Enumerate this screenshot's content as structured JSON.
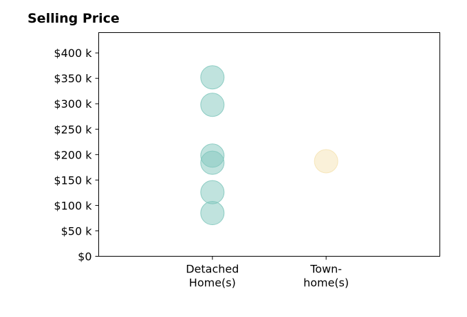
{
  "chart_data": {
    "type": "scatter",
    "title": "Selling Price",
    "xlabel": "",
    "ylabel": "",
    "categories": [
      "Detached\nHome(s)",
      "Town-\nhome(s)"
    ],
    "ylim": [
      0,
      440000
    ],
    "xlim": [
      0,
      3
    ],
    "yticks": [
      0,
      50000,
      100000,
      150000,
      200000,
      250000,
      300000,
      350000,
      400000
    ],
    "ytick_labels": [
      "$0",
      "$50 k",
      "$100 k",
      "$150 k",
      "$200 k",
      "$250 k",
      "$300 k",
      "$350 k",
      "$400 k"
    ],
    "grid": false,
    "series": [
      {
        "color": "#82c8be",
        "category_index": 0,
        "values": [
          352000,
          298000,
          198000,
          184000,
          126000,
          85000
        ]
      },
      {
        "color": "#f5e3b3",
        "category_index": 1,
        "values": [
          187000
        ]
      }
    ]
  }
}
